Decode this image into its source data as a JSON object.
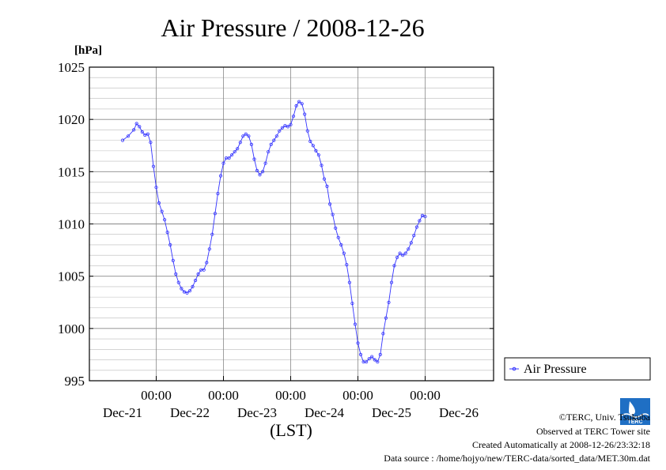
{
  "colors": {
    "series": "#3333ff",
    "grid_fine": "#bbbbbb",
    "grid_major": "#888888",
    "axis": "#000000"
  },
  "chart_data": {
    "type": "line",
    "title": "Air Pressure / 2008-12-26",
    "ylabel": "[hPa]",
    "xlabel": "(LST)",
    "ylim": [
      995,
      1025
    ],
    "yticks": [
      "1025",
      "1020",
      "1015",
      "1010",
      "1005",
      "1000",
      "995"
    ],
    "xticks_time": [
      "00:00",
      "00:00",
      "00:00",
      "00:00",
      "00:00"
    ],
    "xticks_date": [
      "Dec-21",
      "Dec-22",
      "Dec-23",
      "Dec-24",
      "Dec-25",
      "Dec-26"
    ],
    "grid": true,
    "legend_position": "right",
    "series": [
      {
        "name": "Air Pressure",
        "points": [
          [
            -12,
            1018.0
          ],
          [
            -10,
            1018.4
          ],
          [
            -8,
            1019.0
          ],
          [
            -7,
            1019.6
          ],
          [
            -6,
            1019.3
          ],
          [
            -5,
            1018.8
          ],
          [
            -4,
            1018.5
          ],
          [
            -3,
            1018.6
          ],
          [
            -2,
            1017.8
          ],
          [
            -1,
            1015.5
          ],
          [
            0,
            1013.5
          ],
          [
            1,
            1012.0
          ],
          [
            2,
            1011.2
          ],
          [
            3,
            1010.4
          ],
          [
            4,
            1009.2
          ],
          [
            5,
            1008.0
          ],
          [
            6,
            1006.5
          ],
          [
            7,
            1005.2
          ],
          [
            8,
            1004.4
          ],
          [
            9,
            1003.8
          ],
          [
            10,
            1003.5
          ],
          [
            11,
            1003.4
          ],
          [
            12,
            1003.6
          ],
          [
            13,
            1004.0
          ],
          [
            14,
            1004.6
          ],
          [
            15,
            1005.2
          ],
          [
            16,
            1005.6
          ],
          [
            17,
            1005.6
          ],
          [
            18,
            1006.3
          ],
          [
            19,
            1007.6
          ],
          [
            20,
            1009.0
          ],
          [
            21,
            1011.0
          ],
          [
            22,
            1012.9
          ],
          [
            23,
            1014.6
          ],
          [
            24,
            1015.8
          ],
          [
            25,
            1016.3
          ],
          [
            26,
            1016.3
          ],
          [
            27,
            1016.6
          ],
          [
            28,
            1016.9
          ],
          [
            29,
            1017.2
          ],
          [
            30,
            1017.8
          ],
          [
            31,
            1018.4
          ],
          [
            32,
            1018.6
          ],
          [
            33,
            1018.4
          ],
          [
            34,
            1017.6
          ],
          [
            35,
            1016.2
          ],
          [
            36,
            1015.1
          ],
          [
            37,
            1014.7
          ],
          [
            38,
            1015.0
          ],
          [
            39,
            1015.8
          ],
          [
            40,
            1016.9
          ],
          [
            41,
            1017.6
          ],
          [
            42,
            1018.0
          ],
          [
            43,
            1018.4
          ],
          [
            44,
            1018.9
          ],
          [
            45,
            1019.2
          ],
          [
            46,
            1019.4
          ],
          [
            47,
            1019.3
          ],
          [
            48,
            1019.5
          ],
          [
            49,
            1020.3
          ],
          [
            50,
            1021.3
          ],
          [
            51,
            1021.7
          ],
          [
            52,
            1021.5
          ],
          [
            53,
            1020.5
          ],
          [
            54,
            1018.9
          ],
          [
            55,
            1017.9
          ],
          [
            56,
            1017.5
          ],
          [
            57,
            1017.0
          ],
          [
            58,
            1016.6
          ],
          [
            59,
            1015.6
          ],
          [
            60,
            1014.3
          ],
          [
            61,
            1013.6
          ],
          [
            62,
            1011.9
          ],
          [
            63,
            1010.9
          ],
          [
            64,
            1009.6
          ],
          [
            65,
            1008.7
          ],
          [
            66,
            1008.0
          ],
          [
            67,
            1007.2
          ],
          [
            68,
            1006.1
          ],
          [
            69,
            1004.4
          ],
          [
            70,
            1002.4
          ],
          [
            71,
            1000.4
          ],
          [
            72,
            998.6
          ],
          [
            73,
            997.5
          ],
          [
            74,
            996.8
          ],
          [
            75,
            996.8
          ],
          [
            76,
            997.1
          ],
          [
            77,
            997.3
          ],
          [
            78,
            997.0
          ],
          [
            79,
            996.8
          ],
          [
            80,
            997.5
          ],
          [
            81,
            999.5
          ],
          [
            82,
            1001.0
          ],
          [
            83,
            1002.5
          ],
          [
            84,
            1004.4
          ],
          [
            85,
            1006.0
          ],
          [
            86,
            1006.8
          ],
          [
            87,
            1007.2
          ],
          [
            88,
            1007.0
          ],
          [
            89,
            1007.2
          ],
          [
            90,
            1007.6
          ],
          [
            91,
            1008.2
          ],
          [
            92,
            1008.9
          ],
          [
            93,
            1009.7
          ],
          [
            94,
            1010.3
          ],
          [
            95,
            1010.8
          ],
          [
            96,
            1010.7
          ]
        ]
      }
    ]
  },
  "footer": {
    "copyright": "©TERC, Univ. Tsukuba",
    "observed": "Observed at TERC Tower site",
    "created": "Created Automatically at 2008-12-26/23:32:18",
    "source": "Data source : /home/hojyo/new/TERC-data/sorted_data/MET.30m.dat",
    "logo_text": "TERC"
  }
}
